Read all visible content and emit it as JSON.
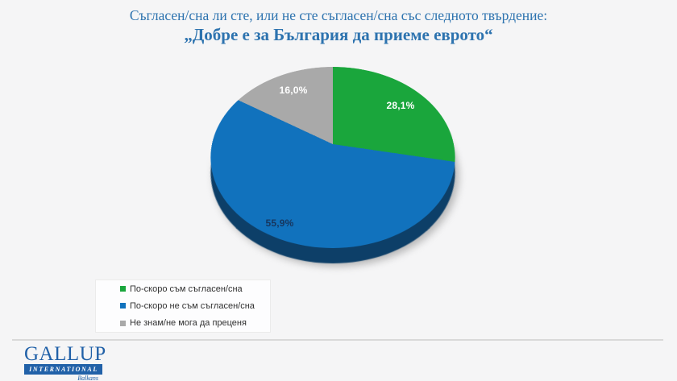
{
  "title": {
    "line1": "Съгласен/сна ли сте, или не сте съгласен/сна със следното твърдение:",
    "line2": "„Добре е за България да приеме еврото“",
    "color": "#2d73af"
  },
  "chart_data": {
    "type": "pie",
    "style": "3d",
    "title": "Съгласен/сна ли сте, или не сте съгласен/сна със следното твърдение: „Добре е за България да приеме еврото“",
    "start_angle_deg": 0,
    "direction": "clockwise",
    "legend_position": "bottom-left",
    "slices": [
      {
        "label": "По-скоро съм съгласен/сна",
        "value": 28.1,
        "display": "28,1%",
        "color": "#1aa63c",
        "label_color": "#ffffff"
      },
      {
        "label": "По-скоро не съм съгласен/сна",
        "value": 55.9,
        "display": "55,9%",
        "color": "#1172bd",
        "label_color": "#17365e"
      },
      {
        "label": "Не знам/не мога да преценя",
        "value": 16.0,
        "display": "16,0%",
        "color": "#a9a9a9",
        "label_color": "#ffffff"
      }
    ],
    "side_color": "#0d3f68"
  },
  "logo": {
    "name": "GALLUP",
    "subtitle": "INTERNATIONAL",
    "region": "Balkans",
    "color": "#2161a8"
  }
}
